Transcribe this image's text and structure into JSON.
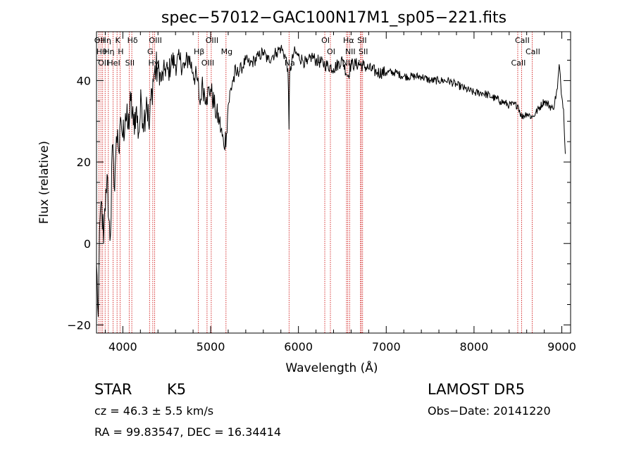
{
  "chart_data": {
    "type": "line",
    "title": "spec−57012−GAC100N17M1_sp05−221.fits",
    "xlabel": "Wavelength (Å)",
    "ylabel": "Flux (relative)",
    "xlim": [
      3700,
      9100
    ],
    "ylim": [
      -22,
      52
    ],
    "x_ticks": [
      4000,
      5000,
      6000,
      7000,
      8000,
      9000
    ],
    "y_ticks": [
      -20,
      0,
      20,
      40
    ],
    "y_tick_labels": [
      "−20",
      "0",
      "20",
      "40"
    ],
    "x_minor_step": 200,
    "y_minor_step": 5,
    "grid": false,
    "series": [
      {
        "x": [
          3700,
          3720,
          3740,
          3760,
          3780,
          3800,
          3820,
          3840,
          3860,
          3880,
          3900,
          3920,
          3940,
          3960,
          3980,
          4000,
          4030,
          4060,
          4090,
          4120,
          4150,
          4180,
          4210,
          4240,
          4270,
          4300,
          4330,
          4360,
          4400,
          4440,
          4480,
          4520,
          4560,
          4600,
          4650,
          4700,
          4750,
          4800,
          4850,
          4880,
          4900,
          4950,
          5000,
          5050,
          5100,
          5150,
          5180,
          5200,
          5250,
          5300,
          5350,
          5400,
          5450,
          5500,
          5550,
          5600,
          5650,
          5700,
          5750,
          5800,
          5850,
          5880,
          5893,
          5900,
          5950,
          6000,
          6050,
          6100,
          6150,
          6200,
          6300,
          6400,
          6500,
          6563,
          6600,
          6700,
          6800,
          6900,
          7000,
          7100,
          7200,
          7300,
          7400,
          7500,
          7600,
          7700,
          7800,
          7900,
          8000,
          8100,
          8200,
          8300,
          8400,
          8500,
          8542,
          8600,
          8662,
          8700,
          8800,
          8900,
          8950,
          8970,
          9000,
          9020,
          9040
        ],
        "y": [
          -5,
          -18,
          6,
          10,
          0,
          8,
          17,
          6,
          2,
          24,
          14,
          22,
          28,
          22,
          30,
          26,
          32,
          28,
          35,
          29,
          33,
          27,
          35,
          30,
          36,
          28,
          38,
          42,
          43,
          40,
          43,
          42,
          45,
          44,
          45,
          43,
          46,
          42,
          40,
          34,
          39,
          36,
          38,
          33,
          30,
          24,
          27,
          34,
          40,
          42,
          43,
          45,
          44,
          45,
          46,
          47,
          45,
          46,
          47,
          48,
          46,
          43,
          28,
          42,
          47,
          46,
          45,
          44,
          46,
          45,
          44,
          43,
          45,
          41,
          44,
          44,
          43,
          42,
          42,
          42,
          41,
          41,
          41,
          40,
          40,
          40,
          39,
          38,
          37,
          37,
          36,
          35,
          34,
          34,
          31,
          32,
          31,
          32,
          35,
          33,
          38,
          44,
          36,
          33,
          22
        ]
      }
    ],
    "spectral_lines": [
      {
        "w": 3727,
        "label": "OII"
      },
      {
        "w": 3750,
        "label": "Hθ"
      },
      {
        "w": 3770,
        "label": "OII"
      },
      {
        "w": 3798,
        "label": "Hη"
      },
      {
        "w": 3835,
        "label": "Hη"
      },
      {
        "w": 3889,
        "label": "HeI"
      },
      {
        "w": 3934,
        "label": "K"
      },
      {
        "w": 3968,
        "label": "H"
      },
      {
        "w": 4072,
        "label": "SII"
      },
      {
        "w": 4102,
        "label": "Hδ"
      },
      {
        "w": 4304,
        "label": "G"
      },
      {
        "w": 4341,
        "label": "Hγ"
      },
      {
        "w": 4363,
        "label": "OIII"
      },
      {
        "w": 4861,
        "label": "Hβ"
      },
      {
        "w": 4959,
        "label": "OIII"
      },
      {
        "w": 5007,
        "label": "OIII"
      },
      {
        "w": 5175,
        "label": "Mg"
      },
      {
        "w": 5893,
        "label": "Na"
      },
      {
        "w": 6300,
        "label": "OI"
      },
      {
        "w": 6364,
        "label": "OI"
      },
      {
        "w": 6548,
        "label": "NII"
      },
      {
        "w": 6563,
        "label": "Hα"
      },
      {
        "w": 6583,
        "label": "NII"
      },
      {
        "w": 6707,
        "label": "Li"
      },
      {
        "w": 6716,
        "label": "SII"
      },
      {
        "w": 6731,
        "label": "SII"
      },
      {
        "w": 8498,
        "label": "CaII"
      },
      {
        "w": 8542,
        "label": "CaII"
      },
      {
        "w": 8662,
        "label": "CaII"
      }
    ],
    "line_color": "#000000",
    "marker_color": "#cc0000"
  },
  "info": {
    "object_class": "STAR",
    "subclass": "K5",
    "cz": "cz = 46.3 ± 5.5 km/s",
    "coords": "RA =  99.83547, DEC =  16.34414",
    "survey": "LAMOST DR5",
    "obs_date": "Obs−Date: 20141220"
  }
}
